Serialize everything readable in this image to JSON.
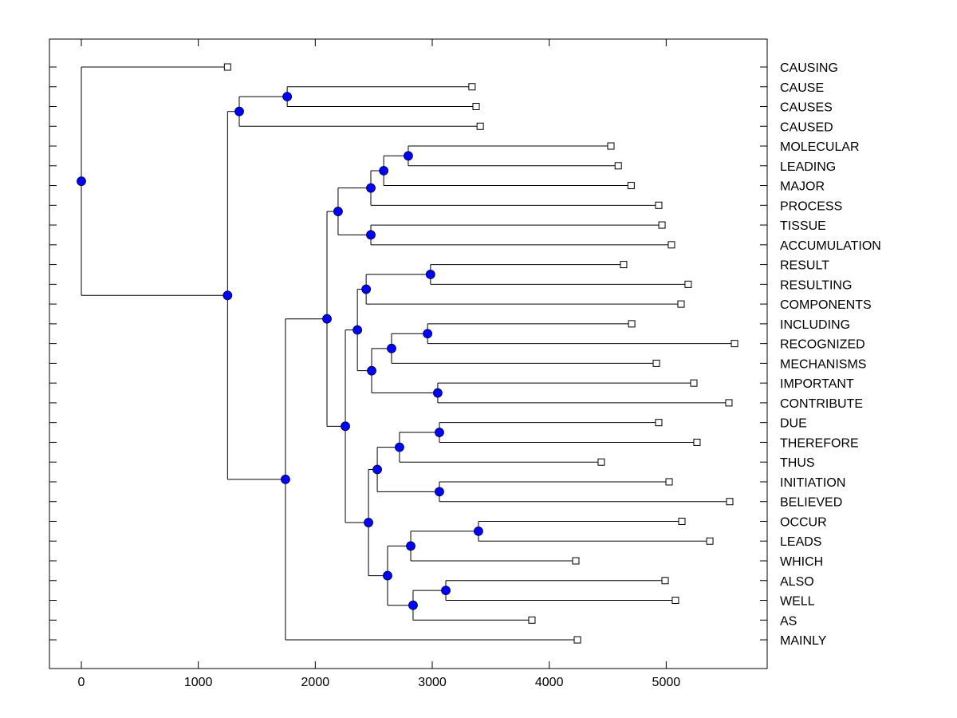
{
  "chart_data": {
    "type": "dendrogram",
    "title": "",
    "xlabel": "",
    "ylabel": "",
    "xlim": [
      -270,
      5860
    ],
    "x_ticks": [
      0,
      1000,
      2000,
      3000,
      4000,
      5000
    ],
    "x_tick_labels": [
      "0",
      "1000",
      "2000",
      "3000",
      "4000",
      "5000"
    ],
    "grid": false,
    "node_color": "#0000ff",
    "leaf_marker": "open-square",
    "leaves": [
      {
        "label": "CAUSING",
        "value": 1250
      },
      {
        "label": "CAUSE",
        "value": 3340
      },
      {
        "label": "CAUSES",
        "value": 3375
      },
      {
        "label": "CAUSED",
        "value": 3410
      },
      {
        "label": "MOLECULAR",
        "value": 4527
      },
      {
        "label": "LEADING",
        "value": 4590
      },
      {
        "label": "MAJOR",
        "value": 4700
      },
      {
        "label": "PROCESS",
        "value": 4936
      },
      {
        "label": "TISSUE",
        "value": 4964
      },
      {
        "label": "ACCUMULATION",
        "value": 5045
      },
      {
        "label": "RESULT",
        "value": 4636
      },
      {
        "label": "RESULTING",
        "value": 5188
      },
      {
        "label": "COMPONENTS",
        "value": 5127
      },
      {
        "label": "INCLUDING",
        "value": 4705
      },
      {
        "label": "RECOGNIZED",
        "value": 5584
      },
      {
        "label": "MECHANISMS",
        "value": 4916
      },
      {
        "label": "IMPORTANT",
        "value": 5236
      },
      {
        "label": "CONTRIBUTE",
        "value": 5536
      },
      {
        "label": "DUE",
        "value": 4936
      },
      {
        "label": "THEREFORE",
        "value": 5263
      },
      {
        "label": "THUS",
        "value": 4445
      },
      {
        "label": "INITIATION",
        "value": 5025
      },
      {
        "label": "BELIEVED",
        "value": 5543
      },
      {
        "label": "OCCUR",
        "value": 5134
      },
      {
        "label": "LEADS",
        "value": 5373
      },
      {
        "label": "WHICH",
        "value": 4227
      },
      {
        "label": "ALSO",
        "value": 4991
      },
      {
        "label": "WELL",
        "value": 5079
      },
      {
        "label": "AS",
        "value": 3852
      },
      {
        "label": "MAINLY",
        "value": 4241
      }
    ],
    "tree": {
      "value": 0,
      "children": [
        {
          "leaf": "CAUSING"
        },
        {
          "value": 1250,
          "children": [
            {
              "value": 1350,
              "children": [
                {
                  "value": 1760,
                  "children": [
                    {
                      "leaf": "CAUSE"
                    },
                    {
                      "leaf": "CAUSES"
                    }
                  ]
                },
                {
                  "leaf": "CAUSED"
                }
              ]
            },
            {
              "value": 1745,
              "children": [
                {
                  "value": 2100,
                  "children": [
                    {
                      "value": 2195,
                      "children": [
                        {
                          "value": 2475,
                          "children": [
                            {
                              "value": 2585,
                              "children": [
                                {
                                  "value": 2795,
                                  "children": [
                                    {
                                      "leaf": "MOLECULAR"
                                    },
                                    {
                                      "leaf": "LEADING"
                                    }
                                  ]
                                },
                                {
                                  "leaf": "MAJOR"
                                }
                              ]
                            },
                            {
                              "leaf": "PROCESS"
                            }
                          ]
                        },
                        {
                          "value": 2475,
                          "children": [
                            {
                              "leaf": "TISSUE"
                            },
                            {
                              "leaf": "ACCUMULATION"
                            }
                          ]
                        }
                      ]
                    },
                    {
                      "value": 2257,
                      "children": [
                        {
                          "value": 2360,
                          "children": [
                            {
                              "value": 2435,
                              "children": [
                                {
                                  "value": 2985,
                                  "children": [
                                    {
                                      "leaf": "RESULT"
                                    },
                                    {
                                      "leaf": "RESULTING"
                                    }
                                  ]
                                },
                                {
                                  "leaf": "COMPONENTS"
                                }
                              ]
                            },
                            {
                              "value": 2482,
                              "children": [
                                {
                                  "value": 2652,
                                  "children": [
                                    {
                                      "value": 2960,
                                      "children": [
                                        {
                                          "leaf": "INCLUDING"
                                        },
                                        {
                                          "leaf": "RECOGNIZED"
                                        }
                                      ]
                                    },
                                    {
                                      "leaf": "MECHANISMS"
                                    }
                                  ]
                                },
                                {
                                  "value": 3047,
                                  "children": [
                                    {
                                      "leaf": "IMPORTANT"
                                    },
                                    {
                                      "leaf": "CONTRIBUTE"
                                    }
                                  ]
                                }
                              ]
                            }
                          ]
                        },
                        {
                          "value": 2455,
                          "children": [
                            {
                              "value": 2530,
                              "children": [
                                {
                                  "value": 2720,
                                  "children": [
                                    {
                                      "value": 3061,
                                      "children": [
                                        {
                                          "leaf": "DUE"
                                        },
                                        {
                                          "leaf": "THEREFORE"
                                        }
                                      ]
                                    },
                                    {
                                      "leaf": "THUS"
                                    }
                                  ]
                                },
                                {
                                  "value": 3061,
                                  "children": [
                                    {
                                      "leaf": "INITIATION"
                                    },
                                    {
                                      "leaf": "BELIEVED"
                                    }
                                  ]
                                }
                              ]
                            },
                            {
                              "value": 2618,
                              "children": [
                                {
                                  "value": 2816,
                                  "children": [
                                    {
                                      "value": 3395,
                                      "children": [
                                        {
                                          "leaf": "OCCUR"
                                        },
                                        {
                                          "leaf": "LEADS"
                                        }
                                      ]
                                    },
                                    {
                                      "leaf": "WHICH"
                                    }
                                  ]
                                },
                                {
                                  "value": 2836,
                                  "children": [
                                    {
                                      "value": 3116,
                                      "children": [
                                        {
                                          "leaf": "ALSO"
                                        },
                                        {
                                          "leaf": "WELL"
                                        }
                                      ]
                                    },
                                    {
                                      "leaf": "AS"
                                    }
                                  ]
                                }
                              ]
                            }
                          ]
                        }
                      ]
                    }
                  ]
                },
                {
                  "leaf": "MAINLY"
                }
              ]
            }
          ]
        }
      ]
    }
  }
}
